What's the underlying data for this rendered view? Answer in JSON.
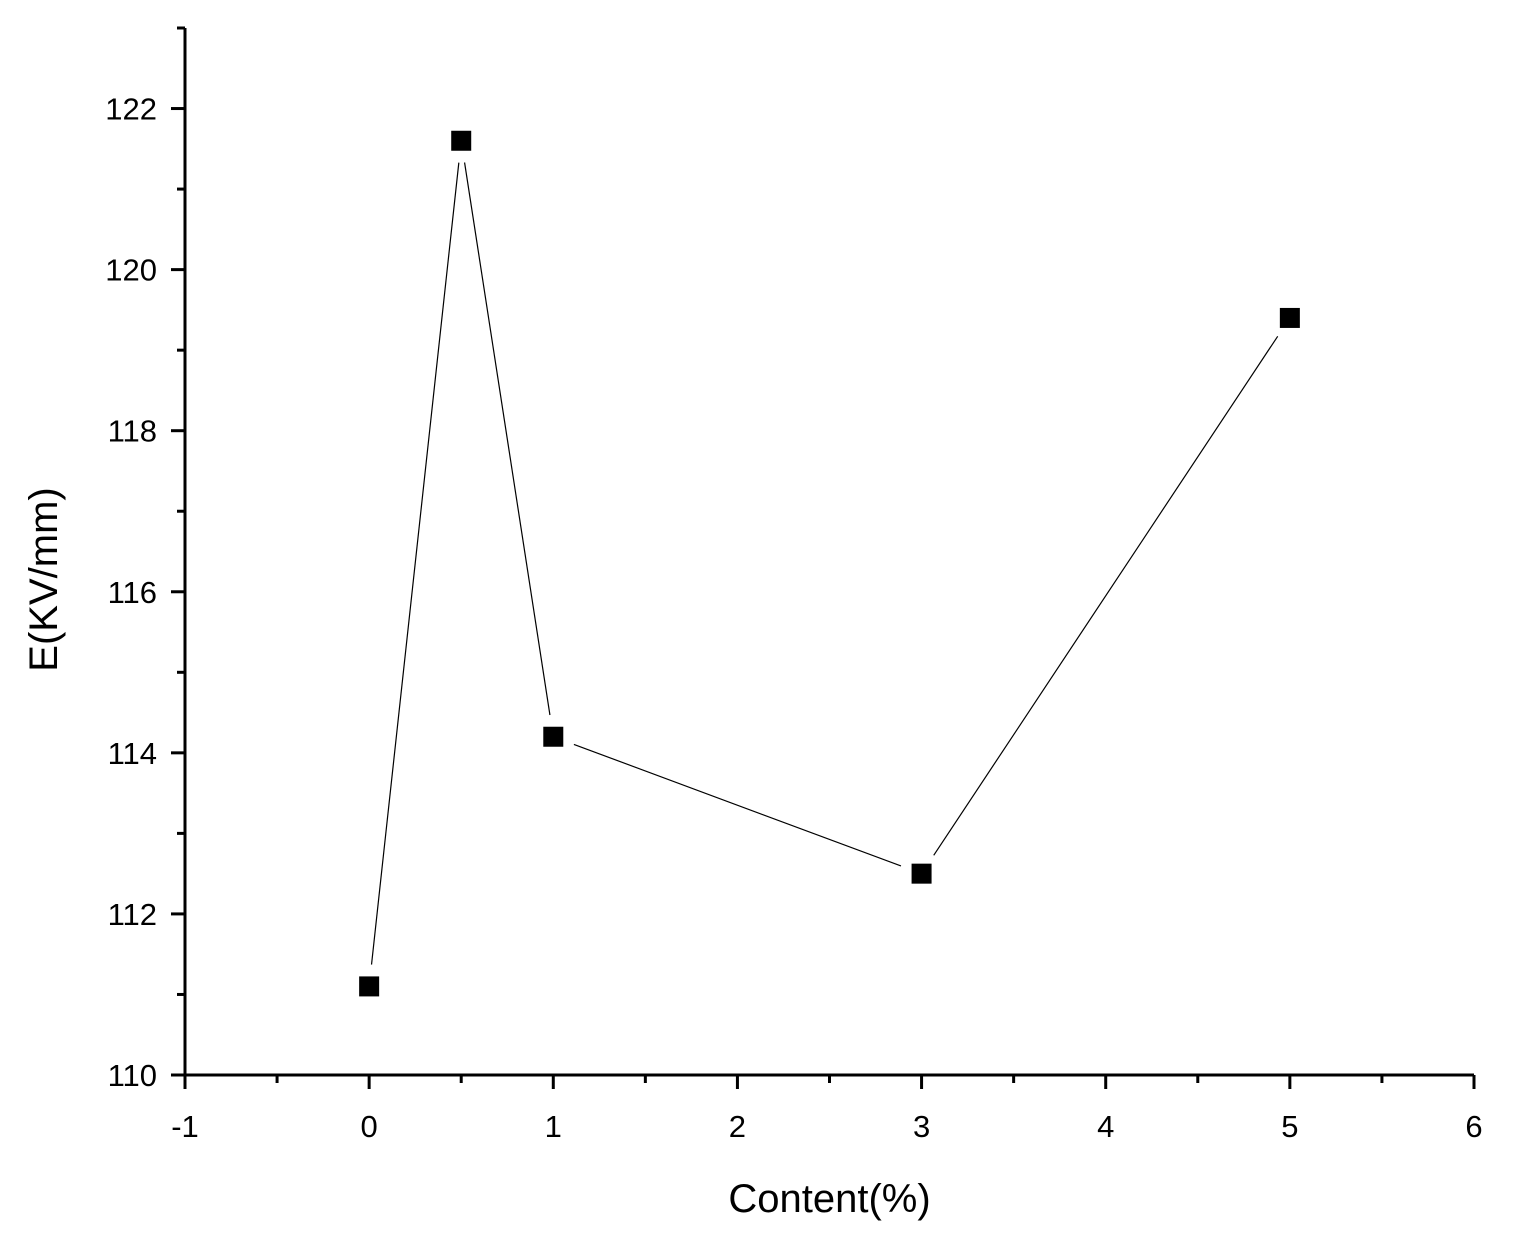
{
  "chart_data": {
    "type": "line",
    "title": "",
    "xlabel": "Content(%)",
    "ylabel": "E(KV/mm)",
    "xlim": [
      -1,
      6
    ],
    "ylim": [
      110,
      123
    ],
    "x_ticks": [
      -1,
      0,
      1,
      2,
      3,
      4,
      5,
      6
    ],
    "y_ticks": [
      110,
      112,
      114,
      116,
      118,
      120,
      122
    ],
    "x_tick_labels": [
      "-1",
      "0",
      "1",
      "2",
      "3",
      "4",
      "5",
      "6"
    ],
    "y_tick_labels": [
      "110",
      "112",
      "114",
      "116",
      "118",
      "120",
      "122"
    ],
    "marker": "square",
    "grid": false,
    "legend": "none",
    "series": [
      {
        "x": [
          0,
          0.5,
          1,
          3,
          5
        ],
        "y": [
          111.1,
          121.6,
          114.2,
          112.5,
          119.4
        ]
      }
    ],
    "colors": {
      "marker": "#000000",
      "line": "#000000",
      "axis": "#000000"
    }
  }
}
